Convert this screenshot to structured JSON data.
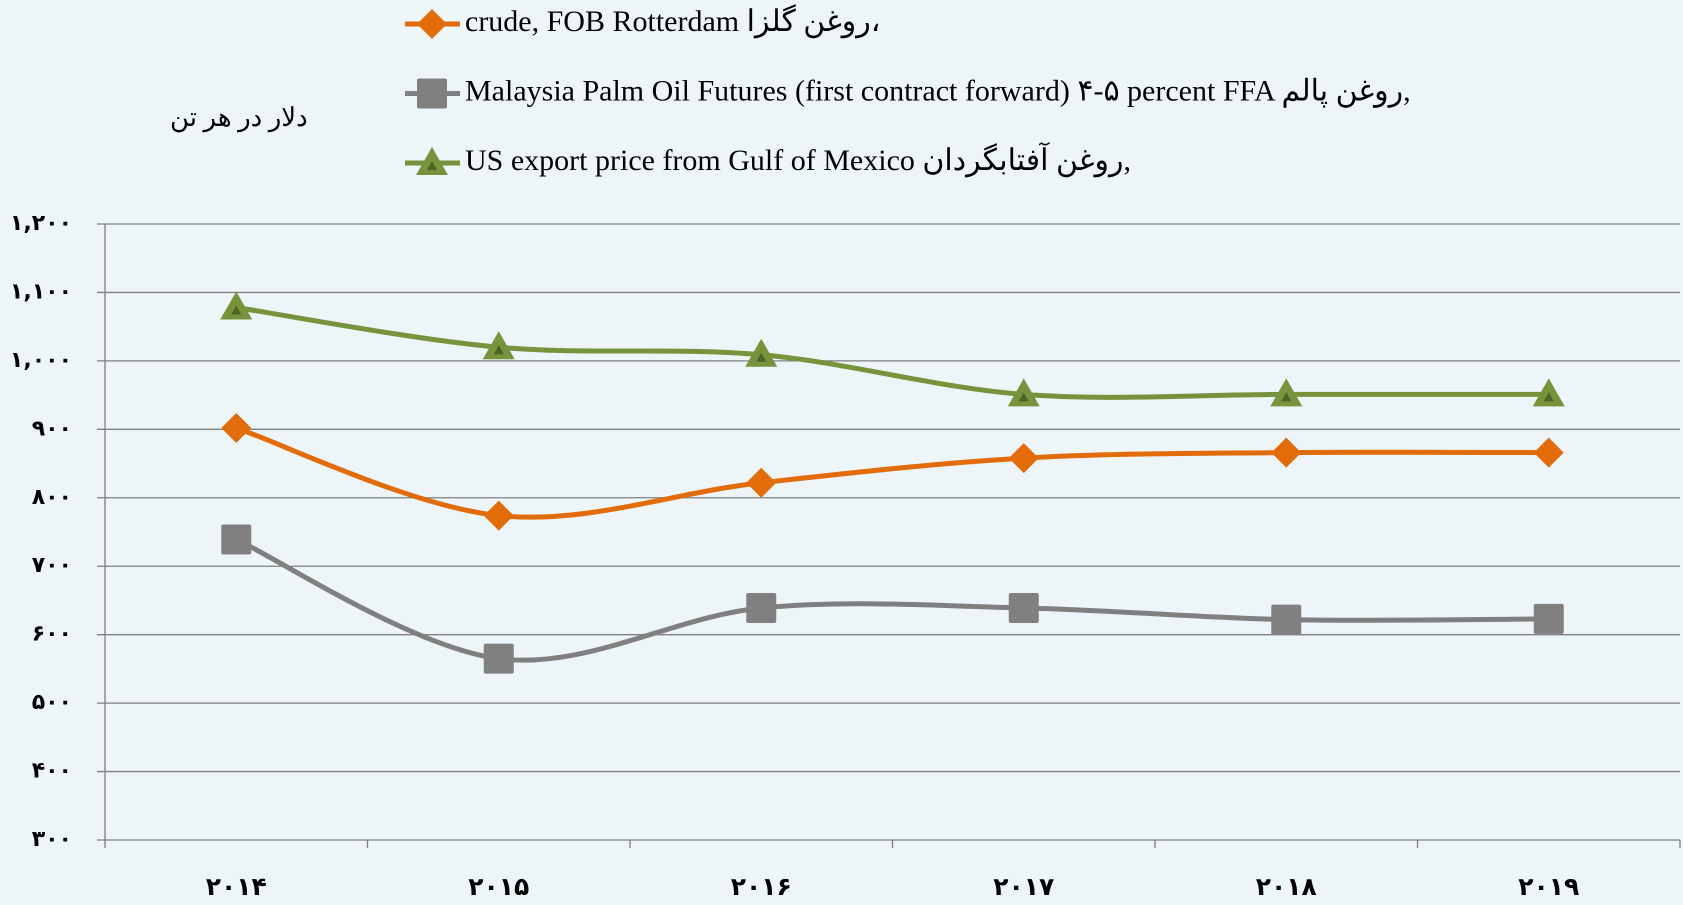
{
  "chart_data": {
    "type": "line",
    "y_label": "دلار در هر تن",
    "categories": [
      "۲۰۱۴",
      "۲۰۱۵",
      "۲۰۱۶",
      "۲۰۱۷",
      "۲۰۱۸",
      "۲۰۱۹"
    ],
    "series": [
      {
        "name": "crude, FOB Rotterdam روغن گلزا،",
        "color": "#e36c0a",
        "marker": "diamond",
        "values": [
          902,
          774,
          822,
          858,
          866,
          866
        ]
      },
      {
        "name": "Malaysia Palm Oil Futures (first contract forward) ۴-۵ percent FFA روغن پالم,",
        "color": "#808080",
        "marker": "square",
        "values": [
          739,
          565,
          639,
          639,
          622,
          623
        ]
      },
      {
        "name": "US export price from Gulf of Mexico روغن آفتابگردان,",
        "color": "#77933c",
        "marker": "triangle",
        "values": [
          1078,
          1020,
          1009,
          951,
          951,
          951
        ]
      }
    ],
    "ylim": [
      300,
      1200
    ],
    "yticks": [
      {
        "value": 300,
        "label": "۳۰۰"
      },
      {
        "value": 400,
        "label": "۴۰۰"
      },
      {
        "value": 500,
        "label": "۵۰۰"
      },
      {
        "value": 600,
        "label": "۶۰۰"
      },
      {
        "value": 700,
        "label": "۷۰۰"
      },
      {
        "value": 800,
        "label": "۸۰۰"
      },
      {
        "value": 900,
        "label": "۹۰۰"
      },
      {
        "value": 1000,
        "label": "۱,۰۰۰"
      },
      {
        "value": 1100,
        "label": "۱,۱۰۰"
      },
      {
        "value": 1200,
        "label": "۱,۲۰۰"
      }
    ],
    "grid": true,
    "legend": "top"
  }
}
